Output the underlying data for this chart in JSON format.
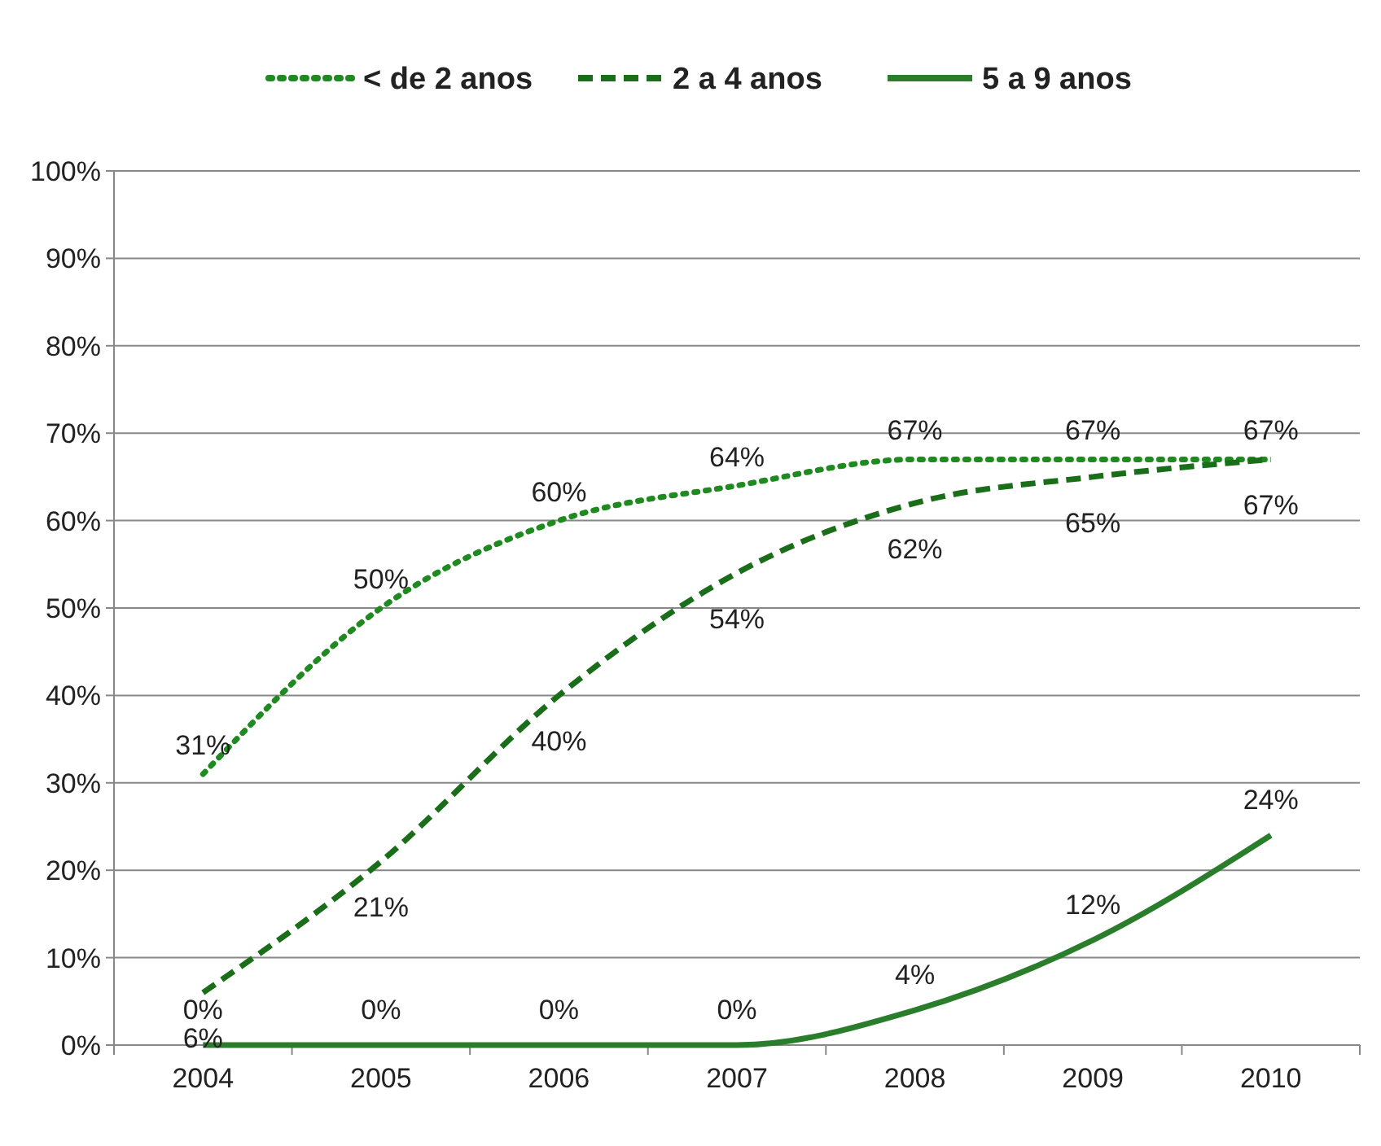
{
  "chart_data": {
    "type": "line",
    "categories": [
      "2004",
      "2005",
      "2006",
      "2007",
      "2008",
      "2009",
      "2010"
    ],
    "series": [
      {
        "name": "< de 2 anos",
        "color": "#1f8a1f",
        "line_style": "dotted",
        "values": [
          31,
          50,
          60,
          64,
          67,
          67,
          67
        ],
        "value_labels": [
          "31%",
          "50%",
          "60%",
          "64%",
          "67%",
          "67%",
          "67%"
        ]
      },
      {
        "name": "2 a 4 anos",
        "color": "#1a6e1a",
        "line_style": "dashed",
        "values": [
          6,
          21,
          40,
          54,
          62,
          65,
          67
        ],
        "value_labels": [
          "6%",
          "21%",
          "40%",
          "54%",
          "62%",
          "65%",
          "67%"
        ]
      },
      {
        "name": "5 a 9 anos",
        "color": "#2a7d2a",
        "line_style": "solid",
        "values": [
          0,
          0,
          0,
          0,
          4,
          12,
          24
        ],
        "value_labels": [
          "0%",
          "0%",
          "0%",
          "0%",
          "4%",
          "12%",
          "24%"
        ]
      }
    ],
    "ylim": [
      0,
      100
    ],
    "yticks": [
      {
        "value": 0,
        "label": "0%"
      },
      {
        "value": 10,
        "label": "10%"
      },
      {
        "value": 20,
        "label": "20%"
      },
      {
        "value": 30,
        "label": "30%"
      },
      {
        "value": 40,
        "label": "40%"
      },
      {
        "value": 50,
        "label": "50%"
      },
      {
        "value": 60,
        "label": "60%"
      },
      {
        "value": 70,
        "label": "70%"
      },
      {
        "value": 80,
        "label": "80%"
      },
      {
        "value": 90,
        "label": "90%"
      },
      {
        "value": 100,
        "label": "100%"
      }
    ],
    "grid": "y",
    "legend": "top",
    "marker": "none"
  }
}
